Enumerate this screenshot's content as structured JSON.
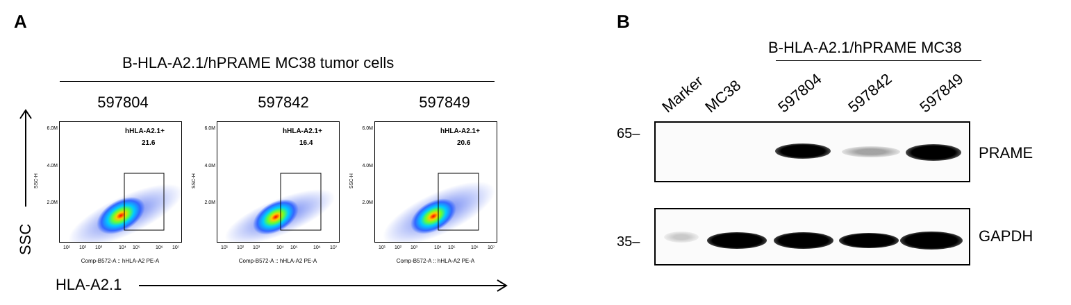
{
  "panel_a": {
    "letter": "A",
    "title": "B-HLA-A2.1/hPRAME MC38 tumor cells",
    "y_axis_label": "SSC",
    "x_axis_label": "HLA-A2.1",
    "plots": [
      {
        "sample": "597804",
        "gate_label": "hHLA-A2.1+",
        "gate_value": "21.6"
      },
      {
        "sample": "597842",
        "gate_label": "hHLA-A2.1+",
        "gate_value": "16.4"
      },
      {
        "sample": "597849",
        "gate_label": "hHLA-A2.1+",
        "gate_value": "20.6"
      }
    ],
    "plot_y_label": "SSC-H",
    "plot_x_label": "Comp-B572-A :: hHLA-A2 PE-A",
    "y_ticks": [
      "6.0M",
      "4.0M",
      "2.0M"
    ],
    "x_ticks": [
      "10¹",
      "10²",
      "10³",
      "10⁴",
      "10⁵",
      "10⁶",
      "10⁷"
    ]
  },
  "panel_b": {
    "letter": "B",
    "title": "B-HLA-A2.1/hPRAME MC38",
    "lanes": [
      "Marker",
      "MC38",
      "597804",
      "597842",
      "597849"
    ],
    "blots": [
      {
        "protein": "PRAME",
        "mw_marker": "65",
        "band_intensity": [
          0,
          0.02,
          0.95,
          0.25,
          0.9
        ]
      },
      {
        "protein": "GAPDH",
        "mw_marker": "35",
        "band_intensity": [
          0.2,
          0.95,
          0.95,
          0.95,
          0.95
        ]
      }
    ]
  }
}
